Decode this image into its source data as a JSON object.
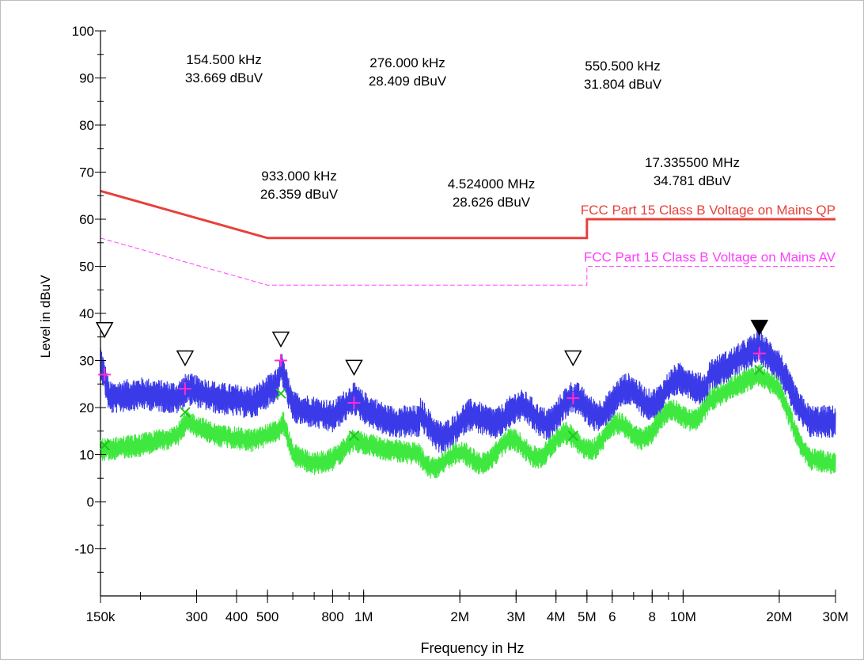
{
  "chart_data": {
    "type": "line",
    "title": "",
    "xlabel": "Frequency in Hz",
    "ylabel": "Level in dBuV",
    "x_scale": "log",
    "xlim": [
      150000,
      30000000
    ],
    "ylim": [
      -20,
      100
    ],
    "y_ticks": [
      "100",
      "90",
      "80",
      "70",
      "60",
      "50",
      "40",
      "30",
      "20",
      "10",
      "0",
      "-10"
    ],
    "x_ticks": [
      {
        "f": 150000,
        "label": "150k"
      },
      {
        "f": 300000,
        "label": "300"
      },
      {
        "f": 400000,
        "label": "400"
      },
      {
        "f": 500000,
        "label": "500"
      },
      {
        "f": 800000,
        "label": "800"
      },
      {
        "f": 1000000,
        "label": "1M"
      },
      {
        "f": 2000000,
        "label": "2M"
      },
      {
        "f": 3000000,
        "label": "3M"
      },
      {
        "f": 4000000,
        "label": "4M"
      },
      {
        "f": 5000000,
        "label": "5M"
      },
      {
        "f": 6000000,
        "label": "6"
      },
      {
        "f": 8000000,
        "label": "8"
      },
      {
        "f": 10000000,
        "label": "10M"
      },
      {
        "f": 20000000,
        "label": "20M"
      },
      {
        "f": 30000000,
        "label": "30M"
      }
    ],
    "grid": false,
    "limit_lines": [
      {
        "name": "FCC Part 15 Class B Voltage on Mains QP",
        "color": "#e8403a",
        "points": [
          [
            150000,
            66
          ],
          [
            500000,
            56
          ],
          [
            5000000,
            56
          ],
          [
            5000000,
            60
          ],
          [
            30000000,
            60
          ]
        ]
      },
      {
        "name": "FCC Part 15 Class B Voltage on Mains AV",
        "color": "#ff40ff",
        "points": [
          [
            150000,
            56
          ],
          [
            500000,
            46
          ],
          [
            5000000,
            46
          ],
          [
            5000000,
            50
          ],
          [
            30000000,
            50
          ]
        ]
      }
    ],
    "series": [
      {
        "color": "#3a3ae8",
        "envelope": [
          [
            150000,
            30
          ],
          [
            160000,
            22
          ],
          [
            200000,
            23
          ],
          [
            260000,
            22
          ],
          [
            280000,
            24
          ],
          [
            350000,
            22
          ],
          [
            450000,
            21
          ],
          [
            540000,
            25
          ],
          [
            550000,
            29
          ],
          [
            600000,
            20
          ],
          [
            700000,
            19
          ],
          [
            800000,
            18
          ],
          [
            930000,
            22
          ],
          [
            1000000,
            20
          ],
          [
            1200000,
            17
          ],
          [
            1500000,
            17
          ],
          [
            2000000,
            15
          ],
          [
            2500000,
            19
          ],
          [
            3000000,
            18
          ],
          [
            4000000,
            19
          ],
          [
            4500000,
            20
          ],
          [
            5000000,
            20
          ],
          [
            7000000,
            22
          ],
          [
            10000000,
            24
          ],
          [
            14000000,
            29
          ],
          [
            17300000,
            33
          ],
          [
            20000000,
            29
          ],
          [
            23000000,
            20
          ],
          [
            25000000,
            17
          ],
          [
            30000000,
            17
          ]
        ],
        "ripple": 7
      },
      {
        "color": "#3ee83e",
        "envelope": [
          [
            150000,
            11
          ],
          [
            200000,
            12
          ],
          [
            260000,
            14
          ],
          [
            280000,
            17
          ],
          [
            350000,
            14
          ],
          [
            450000,
            13
          ],
          [
            540000,
            15
          ],
          [
            560000,
            17
          ],
          [
            600000,
            10
          ],
          [
            700000,
            8
          ],
          [
            800000,
            9
          ],
          [
            930000,
            13
          ],
          [
            1200000,
            11
          ],
          [
            1500000,
            10
          ],
          [
            2000000,
            8
          ],
          [
            2500000,
            11
          ],
          [
            3000000,
            11
          ],
          [
            4000000,
            12
          ],
          [
            5000000,
            13
          ],
          [
            7000000,
            15
          ],
          [
            10000000,
            18
          ],
          [
            14000000,
            24
          ],
          [
            17300000,
            27
          ],
          [
            20000000,
            24
          ],
          [
            23000000,
            13
          ],
          [
            25000000,
            9
          ],
          [
            30000000,
            8
          ]
        ],
        "ripple": 5
      }
    ],
    "peak_markers": [
      {
        "f": 154500,
        "level": 36.0,
        "filled": false
      },
      {
        "f": 276000,
        "level": 30.0,
        "filled": false
      },
      {
        "f": 550500,
        "level": 34.0,
        "filled": false
      },
      {
        "f": 933000,
        "level": 28.0,
        "filled": false
      },
      {
        "f": 4524000,
        "level": 30.0,
        "filled": false
      },
      {
        "f": 17335500,
        "level": 36.5,
        "filled": true
      }
    ],
    "qp_markers": [
      [
        154500,
        27
      ],
      [
        276000,
        24
      ],
      [
        550500,
        30
      ],
      [
        933000,
        21
      ],
      [
        4524000,
        22
      ],
      [
        17335500,
        31.5
      ]
    ],
    "av_markers": [
      [
        154500,
        12
      ],
      [
        276000,
        19
      ],
      [
        550500,
        23
      ],
      [
        933000,
        14
      ],
      [
        4524000,
        14
      ],
      [
        17335500,
        28
      ]
    ],
    "annotations": [
      {
        "freq": "154.500 kHz",
        "level": "33.669 dBuV"
      },
      {
        "freq": "276.000 kHz",
        "level": "28.409 dBuV"
      },
      {
        "freq": "550.500 kHz",
        "level": "31.804 dBuV"
      },
      {
        "freq": "933.000 kHz",
        "level": "26.359 dBuV"
      },
      {
        "freq": "4.524000 MHz",
        "level": "28.626 dBuV"
      },
      {
        "freq": "17.335500 MHz",
        "level": "34.781 dBuV"
      }
    ]
  }
}
